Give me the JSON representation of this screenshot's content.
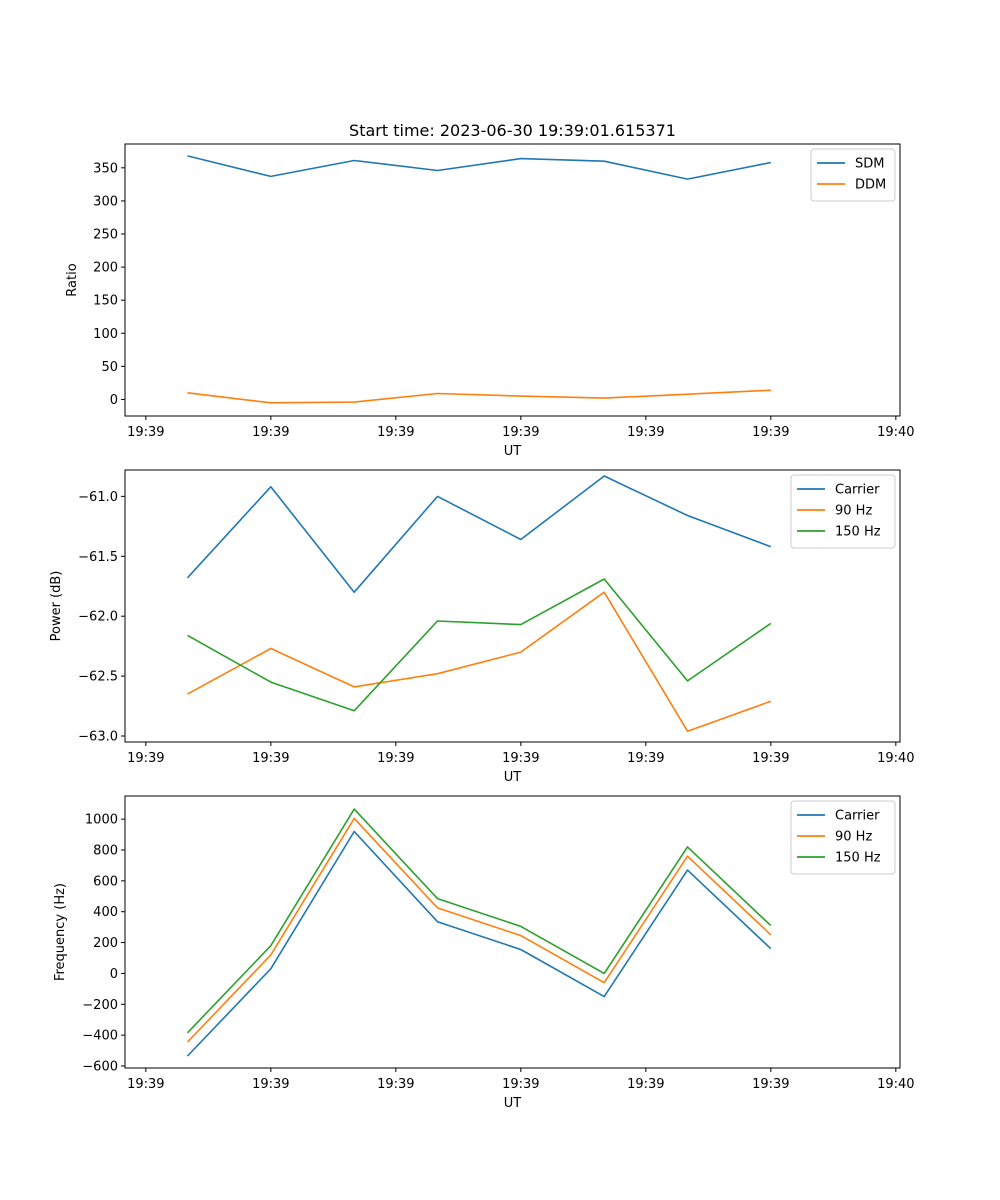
{
  "title": "Start time: 2023-06-30 19:39:01.615371",
  "colors": {
    "blue": "#1f77b4",
    "orange": "#ff7f0e",
    "green": "#2ca02c"
  },
  "chart_data": [
    {
      "type": "line",
      "title": "Start time: 2023-06-30 19:39:01.615371",
      "xlabel": "UT",
      "ylabel": "Ratio",
      "x": [
        0.5,
        1.5,
        2.5,
        3.5,
        4.5,
        5.5,
        6.5,
        7.5
      ],
      "xlim": [
        -0.25,
        9.05
      ],
      "ylim": [
        -25,
        386
      ],
      "xticks": {
        "values": [
          0,
          1.5,
          3,
          4.5,
          6,
          7.5,
          9
        ],
        "labels": [
          "19:39",
          "19:39",
          "19:39",
          "19:39",
          "19:39",
          "19:39",
          "19:40"
        ]
      },
      "yticks": {
        "values": [
          0,
          50,
          100,
          150,
          200,
          250,
          300,
          350
        ],
        "labels": [
          "0",
          "50",
          "100",
          "150",
          "200",
          "250",
          "300",
          "350"
        ]
      },
      "legend": "top-right",
      "grid": false,
      "series": [
        {
          "name": "SDM",
          "color": "#1f77b4",
          "values": [
            368,
            337,
            361,
            346,
            364,
            360,
            333,
            358
          ]
        },
        {
          "name": "DDM",
          "color": "#ff7f0e",
          "values": [
            10,
            -5,
            -4,
            9,
            5,
            2,
            8,
            14
          ]
        }
      ]
    },
    {
      "type": "line",
      "xlabel": "UT",
      "ylabel": "Power (dB)",
      "x": [
        0.5,
        1.5,
        2.5,
        3.5,
        4.5,
        5.5,
        6.5,
        7.5
      ],
      "xlim": [
        -0.25,
        9.05
      ],
      "ylim": [
        -63.05,
        -60.78
      ],
      "xticks": {
        "values": [
          0,
          1.5,
          3,
          4.5,
          6,
          7.5,
          9
        ],
        "labels": [
          "19:39",
          "19:39",
          "19:39",
          "19:39",
          "19:39",
          "19:39",
          "19:40"
        ]
      },
      "yticks": {
        "values": [
          -63.0,
          -62.5,
          -62.0,
          -61.5,
          -61.0
        ],
        "labels": [
          "−63.0",
          "−62.5",
          "−62.0",
          "−61.5",
          "−61.0"
        ]
      },
      "legend": "top-right",
      "grid": false,
      "series": [
        {
          "name": "Carrier",
          "color": "#1f77b4",
          "values": [
            -61.68,
            -60.92,
            -61.8,
            -61.0,
            -61.36,
            -60.83,
            -61.16,
            -61.42
          ]
        },
        {
          "name": "90 Hz",
          "color": "#ff7f0e",
          "values": [
            -62.65,
            -62.27,
            -62.59,
            -62.48,
            -62.3,
            -61.8,
            -62.96,
            -62.71
          ]
        },
        {
          "name": "150 Hz",
          "color": "#2ca02c",
          "values": [
            -62.16,
            -62.55,
            -62.79,
            -62.04,
            -62.07,
            -61.69,
            -62.54,
            -62.06
          ]
        }
      ]
    },
    {
      "type": "line",
      "xlabel": "UT",
      "ylabel": "Frequency (Hz)",
      "x": [
        0.5,
        1.5,
        2.5,
        3.5,
        4.5,
        5.5,
        6.5,
        7.5
      ],
      "xlim": [
        -0.25,
        9.05
      ],
      "ylim": [
        -613,
        1150
      ],
      "xticks": {
        "values": [
          0,
          1.5,
          3,
          4.5,
          6,
          7.5,
          9
        ],
        "labels": [
          "19:39",
          "19:39",
          "19:39",
          "19:39",
          "19:39",
          "19:39",
          "19:40"
        ]
      },
      "yticks": {
        "values": [
          -600,
          -400,
          -200,
          0,
          200,
          400,
          600,
          800,
          1000
        ],
        "labels": [
          "−600",
          "−400",
          "−200",
          "0",
          "200",
          "400",
          "600",
          "800",
          "1000"
        ]
      },
      "legend": "top-right",
      "grid": false,
      "series": [
        {
          "name": "Carrier",
          "color": "#1f77b4",
          "values": [
            -535,
            30,
            920,
            335,
            155,
            -150,
            670,
            160
          ]
        },
        {
          "name": "90 Hz",
          "color": "#ff7f0e",
          "values": [
            -445,
            120,
            1005,
            425,
            245,
            -60,
            760,
            250
          ]
        },
        {
          "name": "150 Hz",
          "color": "#2ca02c",
          "values": [
            -385,
            180,
            1065,
            485,
            305,
            0,
            820,
            310
          ]
        }
      ]
    }
  ]
}
